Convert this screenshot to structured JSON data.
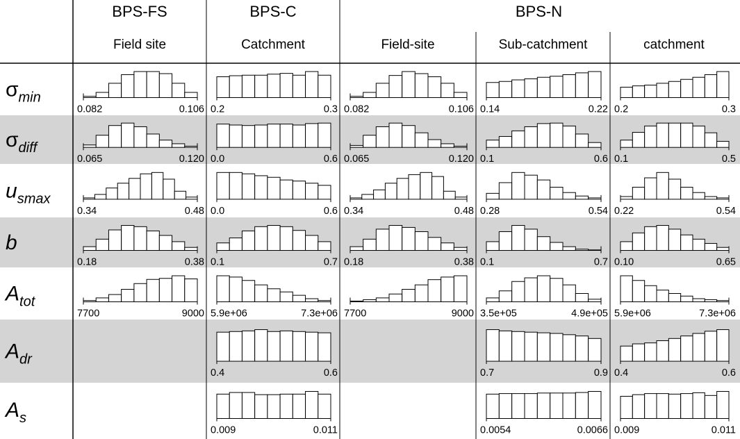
{
  "chart_data": {
    "type": "histogram_grid",
    "groups": [
      {
        "label": "BPS-FS",
        "columns": [
          0
        ]
      },
      {
        "label": "BPS-C",
        "columns": [
          1
        ]
      },
      {
        "label": "BPS-N",
        "columns": [
          2,
          3,
          4
        ]
      }
    ],
    "columns": [
      {
        "label": "Field site"
      },
      {
        "label": "Catchment"
      },
      {
        "label": "Field-site"
      },
      {
        "label": "Sub-catchment"
      },
      {
        "label": "catchment"
      }
    ],
    "rows": [
      {
        "sym": "σ",
        "sub": "min",
        "sigma": true
      },
      {
        "sym": "σ",
        "sub": "diff",
        "sigma": true
      },
      {
        "sym": "u",
        "sub": "smax",
        "sigma": false
      },
      {
        "sym": "b",
        "sub": "",
        "sigma": false
      },
      {
        "sym": "A",
        "sub": "tot",
        "sigma": false
      },
      {
        "sym": "A",
        "sub": "dr",
        "sigma": false
      },
      {
        "sym": "A",
        "sub": "s",
        "sigma": false
      }
    ],
    "shaded_rows": [
      1,
      3,
      5
    ],
    "cells": [
      [
        {
          "min": "0.082",
          "max": "0.106",
          "counts": [
            0.05,
            0.2,
            0.55,
            0.88,
            1.0,
            1.0,
            0.92,
            0.55,
            0.2
          ]
        },
        {
          "min": "0.065",
          "max": "0.120",
          "counts": [
            0.1,
            0.5,
            0.9,
            1.0,
            0.85,
            0.55,
            0.3,
            0.15,
            0.05
          ]
        },
        {
          "min": "0.34",
          "max": "0.48",
          "counts": [
            0.05,
            0.18,
            0.42,
            0.6,
            0.78,
            0.95,
            1.0,
            0.75,
            0.3,
            0.08
          ]
        },
        {
          "min": "0.18",
          "max": "0.38",
          "counts": [
            0.15,
            0.45,
            0.82,
            1.0,
            0.95,
            0.78,
            0.6,
            0.35,
            0.12
          ]
        },
        {
          "min": "7700",
          "max": "9000",
          "counts": [
            0.05,
            0.15,
            0.28,
            0.48,
            0.7,
            0.86,
            0.9,
            1.0,
            0.88
          ]
        },
        null,
        null
      ],
      [
        {
          "min": "0.2",
          "max": "0.3",
          "counts": [
            0.8,
            0.84,
            0.86,
            0.86,
            0.9,
            0.93,
            0.86,
            1.0,
            0.86
          ]
        },
        {
          "min": "0.0",
          "max": "0.6",
          "counts": [
            0.96,
            0.92,
            0.9,
            0.92,
            0.96,
            0.96,
            0.92,
            0.98,
            1.0
          ]
        },
        {
          "min": "0.0",
          "max": "0.6",
          "counts": [
            1.0,
            1.0,
            0.95,
            0.88,
            0.82,
            0.72,
            0.68,
            0.6,
            0.52
          ]
        },
        {
          "min": "0.1",
          "max": "0.7",
          "counts": [
            0.3,
            0.5,
            0.78,
            0.95,
            1.0,
            0.95,
            0.8,
            0.6,
            0.35
          ]
        },
        {
          "min": "5.9e+06",
          "max": "7.3e+06",
          "counts": [
            1.0,
            0.95,
            0.82,
            0.65,
            0.5,
            0.38,
            0.25,
            0.12,
            0.05
          ]
        },
        {
          "min": "0.4",
          "max": "0.6",
          "counts": [
            0.92,
            0.94,
            0.96,
            1.0,
            0.94,
            0.96,
            0.94,
            0.92,
            0.9
          ]
        },
        {
          "min": "0.009",
          "max": "0.011",
          "counts": [
            0.9,
            0.96,
            0.96,
            0.88,
            0.88,
            0.9,
            0.9,
            1.0,
            0.9
          ]
        }
      ],
      [
        {
          "min": "0.082",
          "max": "0.106",
          "counts": [
            0.05,
            0.2,
            0.55,
            0.85,
            1.0,
            0.92,
            0.8,
            0.55,
            0.2
          ]
        },
        {
          "min": "0.065",
          "max": "0.120",
          "counts": [
            0.08,
            0.5,
            0.85,
            1.0,
            0.9,
            0.6,
            0.32,
            0.15,
            0.05
          ]
        },
        {
          "min": "0.34",
          "max": "0.48",
          "counts": [
            0.05,
            0.18,
            0.35,
            0.6,
            0.78,
            0.92,
            1.0,
            0.85,
            0.3,
            0.08
          ]
        },
        {
          "min": "0.18",
          "max": "0.38",
          "counts": [
            0.15,
            0.45,
            0.85,
            1.0,
            0.92,
            0.75,
            0.52,
            0.3,
            0.12
          ]
        },
        {
          "min": "7700",
          "max": "9000",
          "counts": [
            0.03,
            0.08,
            0.15,
            0.3,
            0.48,
            0.65,
            0.85,
            0.95,
            1.0
          ]
        },
        null,
        null
      ],
      [
        {
          "min": "0.14",
          "max": "0.22",
          "counts": [
            0.58,
            0.62,
            0.68,
            0.72,
            0.78,
            0.82,
            0.88,
            0.95,
            1.0
          ]
        },
        {
          "min": "0.1",
          "max": "0.6",
          "counts": [
            0.3,
            0.45,
            0.68,
            0.85,
            0.98,
            1.0,
            0.88,
            0.55,
            0.2
          ]
        },
        {
          "min": "0.28",
          "max": "0.54",
          "counts": [
            0.22,
            0.62,
            1.0,
            0.9,
            0.72,
            0.45,
            0.25,
            0.12,
            0.05
          ]
        },
        {
          "min": "0.1",
          "max": "0.7",
          "counts": [
            0.35,
            0.75,
            1.0,
            0.85,
            0.55,
            0.32,
            0.15,
            0.05,
            0.02
          ]
        },
        {
          "min": "3.5e+05",
          "max": "4.9e+05",
          "counts": [
            0.15,
            0.42,
            0.78,
            0.92,
            1.0,
            0.9,
            0.65,
            0.32,
            0.1
          ]
        },
        {
          "min": "0.7",
          "max": "0.9",
          "counts": [
            1.0,
            0.96,
            0.94,
            0.92,
            0.9,
            0.88,
            0.84,
            0.8,
            0.72
          ]
        },
        {
          "min": "0.0054",
          "max": "0.0066",
          "counts": [
            0.9,
            0.92,
            0.92,
            0.92,
            0.94,
            0.94,
            0.94,
            0.96,
            1.0
          ]
        }
      ],
      [
        {
          "min": "0.2",
          "max": "0.3",
          "counts": [
            0.4,
            0.45,
            0.48,
            0.55,
            0.62,
            0.7,
            0.78,
            0.88,
            1.0
          ]
        },
        {
          "min": "0.1",
          "max": "0.5",
          "counts": [
            0.3,
            0.62,
            0.88,
            1.0,
            1.0,
            1.0,
            0.88,
            0.6,
            0.25
          ]
        },
        {
          "min": "0.22",
          "max": "0.54",
          "counts": [
            0.1,
            0.45,
            0.8,
            1.0,
            0.75,
            0.45,
            0.25,
            0.1,
            0.05
          ]
        },
        {
          "min": "0.10",
          "max": "0.65",
          "counts": [
            0.35,
            0.7,
            0.95,
            1.0,
            0.85,
            0.62,
            0.45,
            0.28,
            0.12
          ]
        },
        {
          "min": "5.9e+06",
          "max": "7.3e+06",
          "counts": [
            1.0,
            0.82,
            0.62,
            0.45,
            0.32,
            0.22,
            0.12,
            0.08,
            0.05
          ]
        },
        {
          "min": "0.4",
          "max": "0.6",
          "counts": [
            0.48,
            0.55,
            0.58,
            0.65,
            0.72,
            0.8,
            0.88,
            0.95,
            1.0
          ]
        },
        {
          "min": "0.009",
          "max": "0.011",
          "counts": [
            0.82,
            0.88,
            0.92,
            0.92,
            0.9,
            0.92,
            0.95,
            0.85,
            1.0
          ]
        }
      ]
    ]
  }
}
